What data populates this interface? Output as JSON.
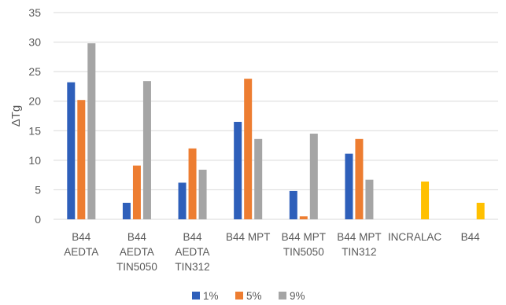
{
  "chart_data": {
    "type": "bar",
    "title": "",
    "xlabel": "",
    "ylabel": "ΔTg",
    "ylim": [
      0,
      35
    ],
    "yticks": [
      0,
      5,
      10,
      15,
      20,
      25,
      30,
      35
    ],
    "grid": true,
    "legend_position": "bottom",
    "categories": [
      [
        "B44",
        "AEDTA"
      ],
      [
        "B44",
        "AEDTA",
        "TIN5050"
      ],
      [
        "B44",
        "AEDTA",
        "TIN312"
      ],
      [
        "B44 MPT"
      ],
      [
        "B44 MPT",
        "TIN5050"
      ],
      [
        "B44 MPT",
        "TIN312"
      ],
      [
        "INCRALAC"
      ],
      [
        "B44"
      ]
    ],
    "series": [
      {
        "name": "1%",
        "color": "#2e5fba",
        "values": [
          23.2,
          2.8,
          6.2,
          16.5,
          4.8,
          11.1,
          null,
          null
        ]
      },
      {
        "name": "5%",
        "color": "#ed7d31",
        "values": [
          20.2,
          9.1,
          12.0,
          23.8,
          0.5,
          13.6,
          null,
          null
        ]
      },
      {
        "name": "9%",
        "color": "#a5a5a5",
        "values": [
          29.8,
          23.4,
          8.4,
          13.6,
          14.5,
          6.7,
          null,
          null
        ]
      }
    ],
    "extra_bars": [
      {
        "category_index": 6,
        "value": 6.4,
        "color": "#ffc000"
      },
      {
        "category_index": 7,
        "value": 2.8,
        "color": "#ffc000"
      }
    ]
  }
}
